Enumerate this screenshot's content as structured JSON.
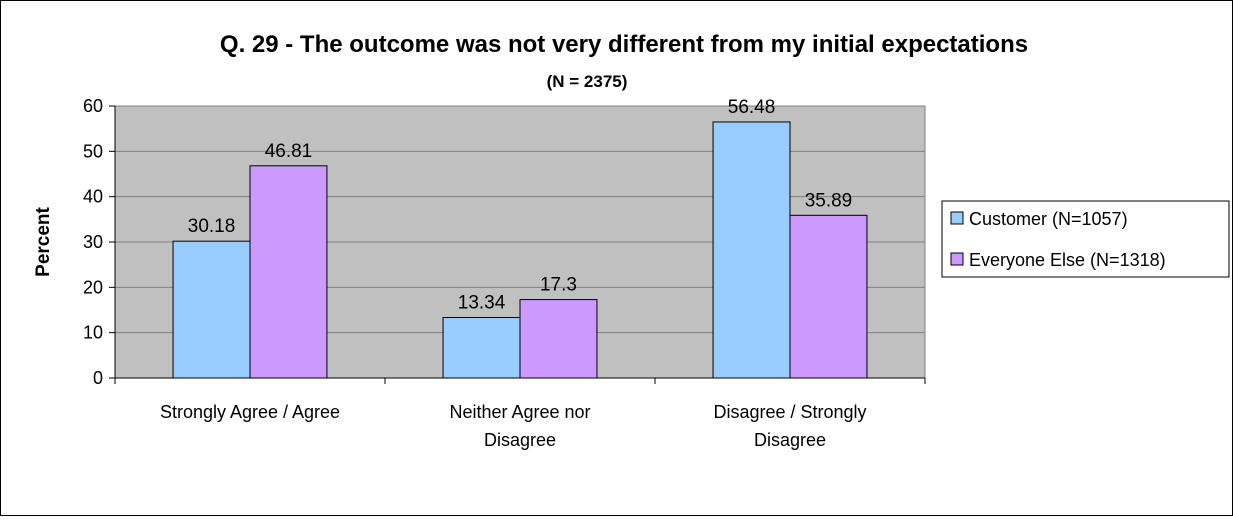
{
  "chart_data": {
    "type": "bar",
    "title": "Q. 29 - The outcome was not very different from my initial expectations",
    "subtitle": "(N = 2375)",
    "ylabel": "Percent",
    "xlabel": "",
    "categories": [
      [
        "Strongly Agree / Agree"
      ],
      [
        "Neither Agree nor",
        "Disagree"
      ],
      [
        "Disagree / Strongly",
        "Disagree"
      ]
    ],
    "series": [
      {
        "name": "Customer (N=1057)",
        "values": [
          30.18,
          13.34,
          56.48
        ],
        "color": "#99CCFF"
      },
      {
        "name": "Everyone Else (N=1318)",
        "values": [
          46.81,
          17.3,
          35.89
        ],
        "color": "#CC99FF"
      }
    ],
    "ylim": [
      0,
      60
    ],
    "yticks": [
      0,
      10,
      20,
      30,
      40,
      50,
      60
    ],
    "plot_background": "#C0C0C0",
    "grid": true,
    "legend_position": "right"
  }
}
